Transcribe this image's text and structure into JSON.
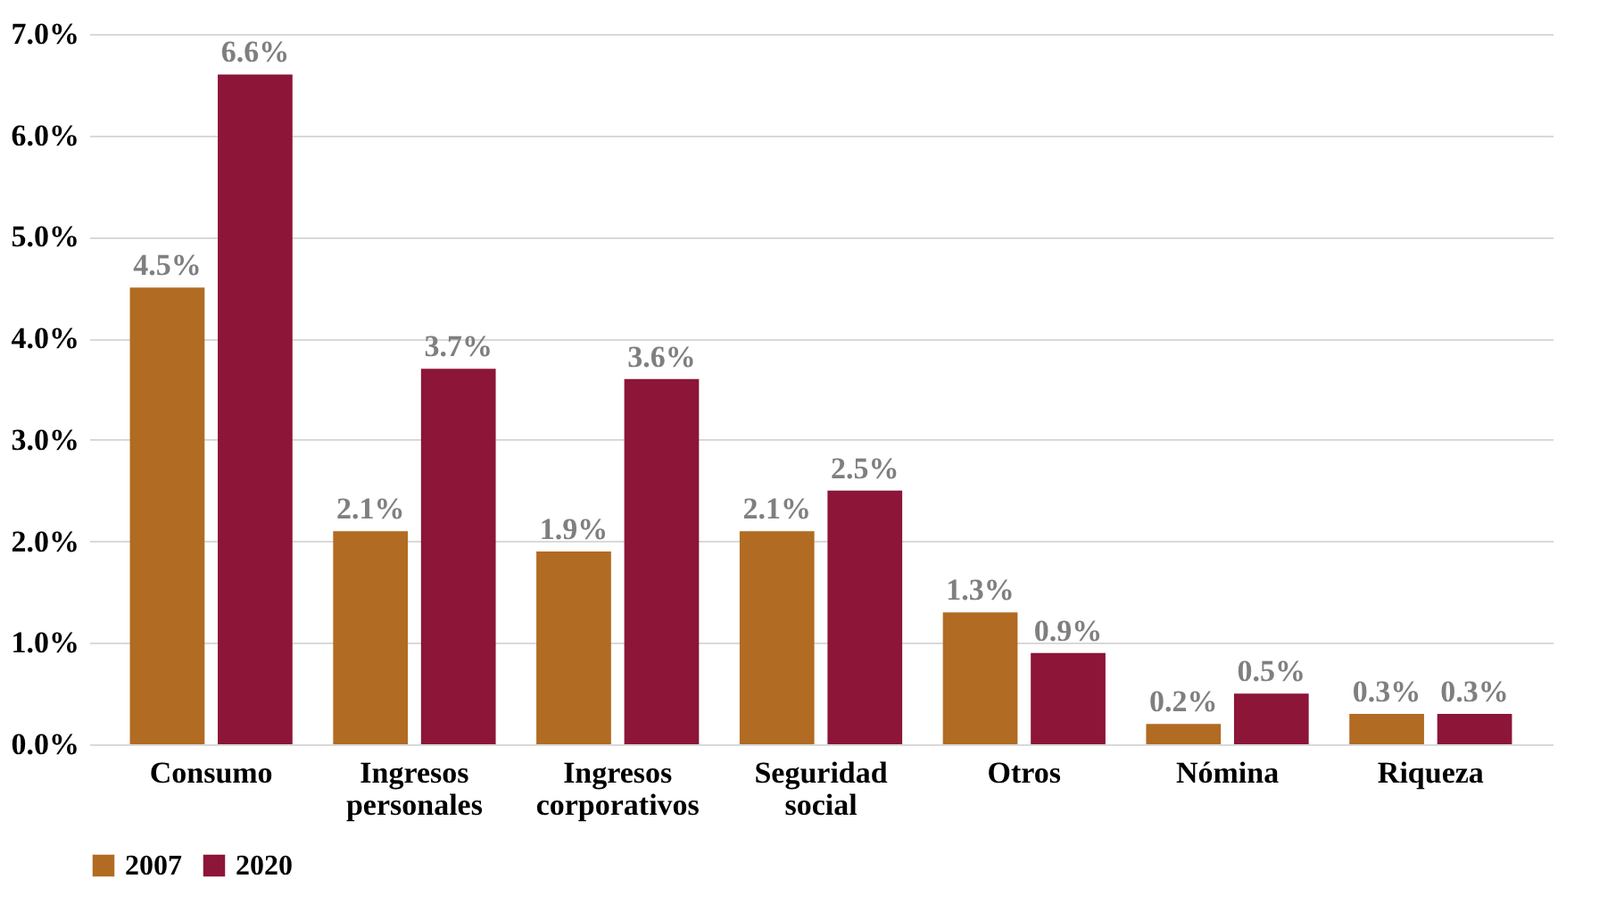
{
  "chart_data": {
    "type": "bar",
    "categories": [
      "Consumo",
      "Ingresos personales",
      "Ingresos corporativos",
      "Seguridad social",
      "Otros",
      "Nómina",
      "Riqueza"
    ],
    "series": [
      {
        "name": "2007",
        "color": "#b16b22",
        "values": [
          4.5,
          2.1,
          1.9,
          2.1,
          1.3,
          0.2,
          0.3
        ],
        "value_labels": [
          "4.5%",
          "2.1%",
          "1.9%",
          "2.1%",
          "1.3%",
          "0.2%",
          "0.3%"
        ]
      },
      {
        "name": "2020",
        "color": "#8c1538",
        "values": [
          6.6,
          3.7,
          3.6,
          2.5,
          0.9,
          0.5,
          0.3
        ],
        "value_labels": [
          "6.6%",
          "3.7%",
          "3.6%",
          "2.5%",
          "0.9%",
          "0.5%",
          "0.3%"
        ]
      }
    ],
    "ylim": [
      0,
      7
    ],
    "yticks": [
      {
        "value": 0,
        "label": "0.0%"
      },
      {
        "value": 1,
        "label": "1.0%"
      },
      {
        "value": 2,
        "label": "2.0%"
      },
      {
        "value": 3,
        "label": "3.0%"
      },
      {
        "value": 4,
        "label": "4.0%"
      },
      {
        "value": 5,
        "label": "5.0%"
      },
      {
        "value": 6,
        "label": "6.0%"
      },
      {
        "value": 7,
        "label": "7.0%"
      }
    ],
    "grid": "y",
    "legend": "bottom"
  }
}
